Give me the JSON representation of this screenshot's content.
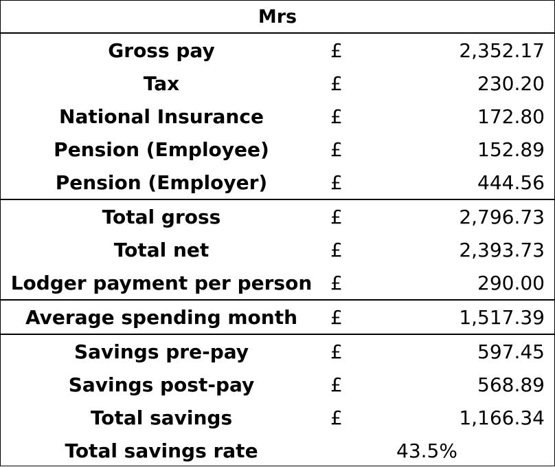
{
  "title": "Mrs",
  "currency_symbol": "£",
  "groups": [
    {
      "rows": [
        {
          "label": "Gross pay",
          "value": "2,352.17"
        },
        {
          "label": "Tax",
          "value": "230.20"
        },
        {
          "label": "National Insurance",
          "value": "172.80"
        },
        {
          "label": "Pension (Employee)",
          "value": "152.89"
        },
        {
          "label": "Pension (Employer)",
          "value": "444.56"
        }
      ]
    },
    {
      "rows": [
        {
          "label": "Total gross",
          "value": "2,796.73"
        },
        {
          "label": "Total net",
          "value": "2,393.73"
        },
        {
          "label": "Lodger payment per person",
          "value": "290.00"
        }
      ]
    },
    {
      "rows": [
        {
          "label": "Average spending month",
          "value": "1,517.39"
        }
      ]
    },
    {
      "rows": [
        {
          "label": "Savings pre-pay",
          "value": "597.45"
        },
        {
          "label": "Savings post-pay",
          "value": "568.89"
        },
        {
          "label": "Total savings",
          "value": "1,166.34"
        }
      ]
    }
  ],
  "savings_rate": {
    "label": "Total savings rate",
    "value": "43.5%"
  }
}
